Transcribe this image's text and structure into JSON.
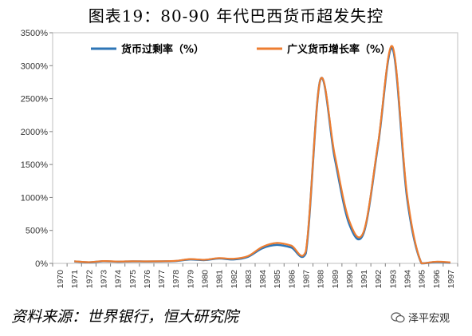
{
  "title": "图表19：80-90 年代巴西货币超发失控",
  "source": "资料来源：世界银行，恒大研究院",
  "watermark": "泽平宏观",
  "watermark_icon": "wechat-icon",
  "chart_data": {
    "type": "line",
    "x": [
      "1970",
      "1971",
      "1972",
      "1973",
      "1974",
      "1975",
      "1976",
      "1977",
      "1978",
      "1979",
      "1980",
      "1981",
      "1982",
      "1983",
      "1984",
      "1985",
      "1986",
      "1987",
      "1988",
      "1989",
      "1990",
      "1991",
      "1992",
      "1993",
      "1994",
      "1995",
      "1996",
      "1997"
    ],
    "series": [
      {
        "name": "货币过剩率（%）",
        "color": "#2e75b6",
        "values": [
          null,
          30,
          15,
          32,
          25,
          30,
          28,
          30,
          35,
          60,
          50,
          75,
          60,
          100,
          230,
          280,
          240,
          150,
          2780,
          1600,
          600,
          460,
          1800,
          3260,
          1000,
          0,
          20,
          10
        ]
      },
      {
        "name": "广义货币增长率（%）",
        "color": "#ed7d31",
        "values": [
          null,
          32,
          18,
          35,
          28,
          32,
          30,
          32,
          38,
          65,
          55,
          80,
          70,
          110,
          250,
          310,
          270,
          180,
          2780,
          1650,
          650,
          480,
          1820,
          3290,
          1050,
          0,
          25,
          15
        ]
      }
    ],
    "ylim": [
      0,
      3500
    ],
    "yticks": [
      "0%",
      "500%",
      "1000%",
      "1500%",
      "2000%",
      "2500%",
      "3000%",
      "3500%"
    ],
    "ytick_values": [
      0,
      500,
      1000,
      1500,
      2000,
      2500,
      3000,
      3500
    ],
    "grid": false,
    "legend": "top"
  }
}
